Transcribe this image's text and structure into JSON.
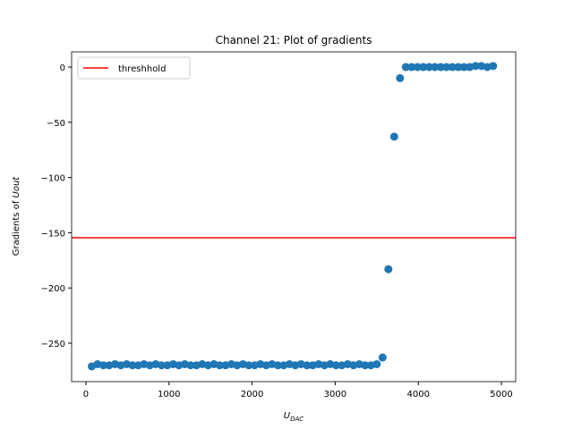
{
  "chart_data": {
    "type": "scatter",
    "title": "Channel 21: Plot of gradients",
    "x_label_main": "U",
    "x_label_sub": "DAC",
    "y_label_main": "Gradients of ",
    "y_label_italic": "Uout",
    "xlim": [
      -172,
      5172
    ],
    "ylim": [
      -284.8,
      13.8
    ],
    "xticks": [
      0,
      1000,
      2000,
      3000,
      4000,
      5000
    ],
    "yticks": [
      {
        "value": -250,
        "label": "−250"
      },
      {
        "value": -200,
        "label": "−200"
      },
      {
        "value": -150,
        "label": "−150"
      },
      {
        "value": -100,
        "label": "−100"
      },
      {
        "value": -50,
        "label": "−50"
      },
      0
    ],
    "legend": "upper left",
    "threshold": {
      "name": "threshhold",
      "value": -154.5,
      "color": "#ff0000"
    },
    "series": [
      {
        "color": "#1f77b4",
        "x": [
          70,
          140,
          210,
          280,
          350,
          420,
          490,
          560,
          630,
          700,
          770,
          840,
          910,
          980,
          1050,
          1120,
          1190,
          1260,
          1330,
          1400,
          1470,
          1540,
          1610,
          1680,
          1750,
          1820,
          1890,
          1960,
          2030,
          2100,
          2170,
          2240,
          2310,
          2380,
          2450,
          2520,
          2590,
          2660,
          2730,
          2800,
          2870,
          2940,
          3010,
          3080,
          3150,
          3220,
          3290,
          3360,
          3430,
          3500,
          3570,
          3640,
          3710,
          3780,
          3850,
          3920,
          3990,
          4060,
          4130,
          4200,
          4270,
          4340,
          4410,
          4480,
          4550,
          4620,
          4690,
          4760,
          4830,
          4900
        ],
        "values": [
          -271,
          -269,
          -270,
          -270,
          -269,
          -270,
          -269,
          -270,
          -270,
          -269,
          -270,
          -269,
          -270,
          -270,
          -269,
          -270,
          -269,
          -270,
          -270,
          -269,
          -270,
          -269,
          -270,
          -270,
          -269,
          -270,
          -269,
          -270,
          -270,
          -269,
          -270,
          -269,
          -270,
          -270,
          -269,
          -270,
          -269,
          -270,
          -270,
          -269,
          -270,
          -269,
          -270,
          -270,
          -269,
          -270,
          -269,
          -270,
          -270,
          -269,
          -263,
          -183,
          -63,
          -10,
          0,
          0,
          0,
          0,
          0,
          0,
          0,
          0,
          0,
          0,
          0,
          0,
          1,
          1,
          0,
          1
        ]
      }
    ]
  }
}
